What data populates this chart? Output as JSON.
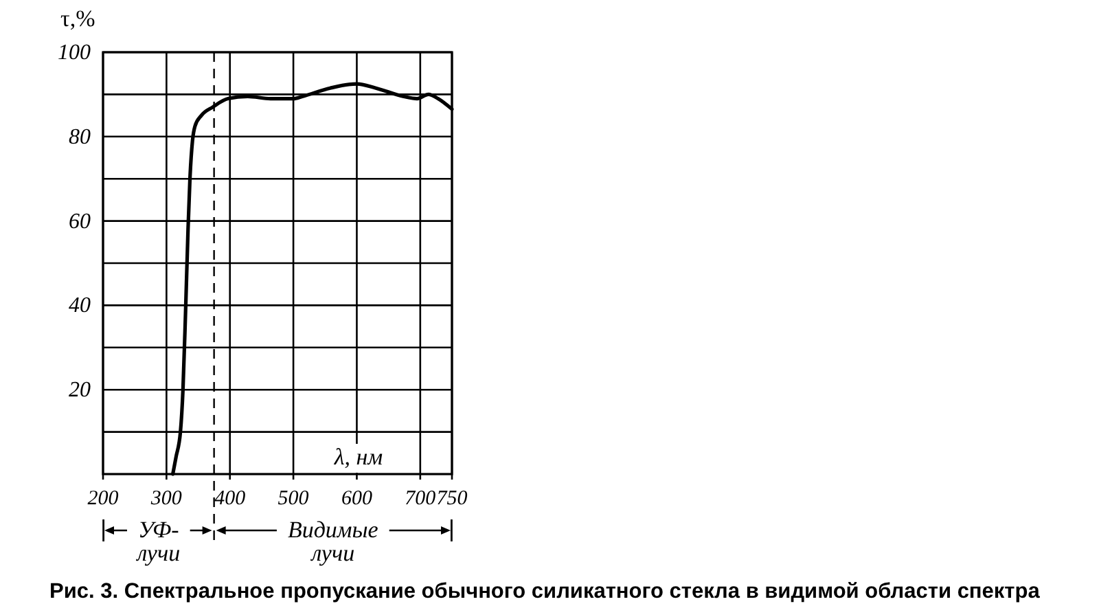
{
  "chart_data": {
    "type": "line",
    "ylabel": "τ,%",
    "xlabel": "λ, нм",
    "annotations": [
      "УФ-\nлучи",
      "Видимые\nлучи",
      "Рис. 3. Спектральное пропускание обычного силикатного стекла в видимой области спектра"
    ],
    "x": [
      310,
      315,
      322,
      326,
      330,
      334,
      337,
      341,
      345,
      355,
      373,
      397,
      428,
      464,
      500,
      514,
      558,
      600,
      630,
      674,
      695,
      713,
      728,
      750
    ],
    "series": [
      {
        "color": "#000000",
        "values": [
          0,
          4,
          10,
          20,
          38,
          58,
          70,
          79,
          82.5,
          85,
          87,
          89,
          89.5,
          89,
          89,
          89.5,
          91.5,
          92.5,
          91.5,
          89.5,
          89,
          90,
          89,
          86.5
        ]
      }
    ],
    "xlim": [
      200,
      750
    ],
    "xticks": [
      200,
      300,
      400,
      500,
      600,
      700,
      750
    ],
    "ylim": [
      0,
      100
    ],
    "yticks": [
      {
        "value": 10,
        "label": null
      },
      20,
      {
        "value": 30,
        "label": null
      },
      40,
      {
        "value": 50,
        "label": null
      },
      60,
      {
        "value": 70,
        "label": null
      },
      80,
      {
        "value": 90,
        "label": null
      },
      100
    ],
    "grid": true,
    "ref_lines": [
      {
        "axis": "x",
        "value": 375,
        "line_style": "dashed"
      }
    ]
  }
}
